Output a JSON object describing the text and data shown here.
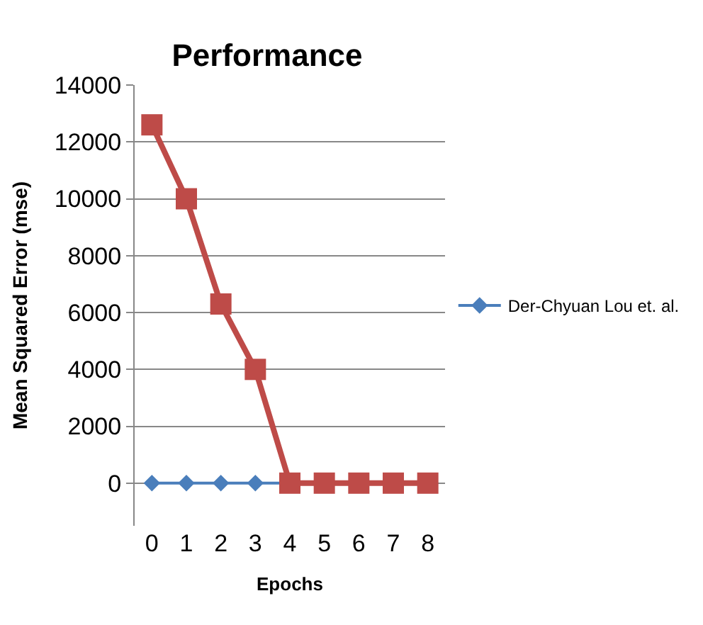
{
  "chart_data": {
    "type": "line",
    "title": "Performance",
    "xlabel": "Epochs",
    "ylabel": "Mean Squared Error (mse)",
    "categories": [
      "0",
      "1",
      "2",
      "3",
      "4",
      "5",
      "6",
      "7",
      "8"
    ],
    "series": [
      {
        "name": "Der-Chyuan Lou et. al.",
        "color": "#4a7ebb",
        "values": [
          0,
          0,
          0,
          0,
          0,
          null,
          null,
          null,
          null
        ],
        "marker": "diamond"
      },
      {
        "color": "#be4b48",
        "values": [
          12600,
          10000,
          6300,
          4000,
          0,
          0,
          0,
          0,
          0
        ],
        "marker": "square"
      }
    ],
    "ylim": [
      -1500,
      14000
    ],
    "yticks": [
      0,
      2000,
      4000,
      6000,
      8000,
      10000,
      12000,
      14000
    ],
    "grid": "y",
    "legend": "right"
  }
}
